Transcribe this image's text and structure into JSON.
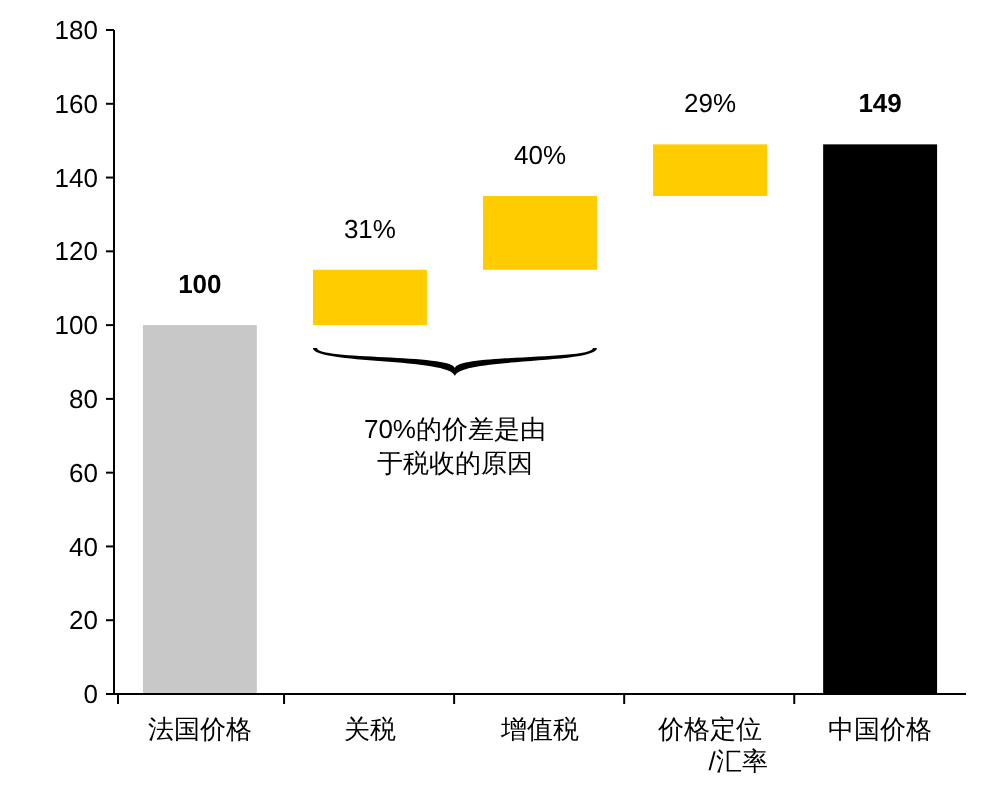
{
  "chart_data": {
    "type": "bar",
    "categories": [
      "法国价格",
      "关税",
      "增值税",
      "价格定位\n/汇率",
      "中国价格"
    ],
    "values": [
      100,
      15,
      20,
      14,
      149
    ],
    "base": [
      0,
      100,
      115,
      135,
      0
    ],
    "colors": [
      "#c8c8c8",
      "#ffcc00",
      "#ffcc00",
      "#ffcc00",
      "#000000"
    ],
    "value_labels": [
      "100",
      null,
      null,
      null,
      "149"
    ],
    "ylim": [
      0,
      180
    ],
    "yticks": [
      0,
      20,
      40,
      60,
      80,
      100,
      120,
      140,
      160,
      180
    ],
    "annotations": [
      "70%的价差是由于税收的原因",
      {
        "text": "31%",
        "x": "关税",
        "y": 115
      },
      {
        "text": "40%",
        "x": "增值税",
        "y": 135
      },
      {
        "text": "29%",
        "x": "价格定位\n/汇率",
        "y": 149
      }
    ],
    "grid": false
  }
}
